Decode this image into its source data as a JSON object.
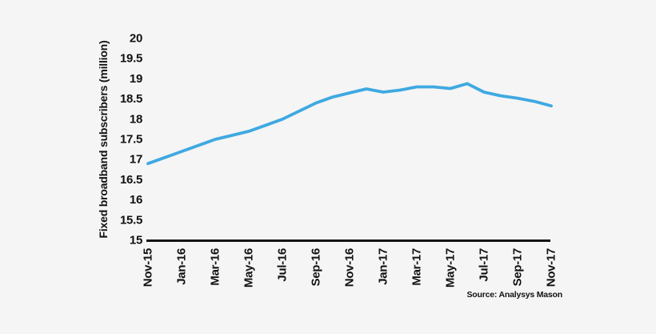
{
  "figure": {
    "background_color": "#f5f5f5",
    "source_note": "Source: Analysys Mason"
  },
  "chart_data": {
    "type": "line",
    "title": "",
    "xlabel": "",
    "ylabel": "Fixed broadband subscribers (million)",
    "categories": [
      "Nov-15",
      "Dec-15",
      "Jan-16",
      "Feb-16",
      "Mar-16",
      "Apr-16",
      "May-16",
      "Jun-16",
      "Jul-16",
      "Aug-16",
      "Sep-16",
      "Oct-16",
      "Nov-16",
      "Dec-16",
      "Jan-17",
      "Feb-17",
      "Mar-17",
      "Apr-17",
      "May-17",
      "Jun-17",
      "Jul-17",
      "Aug-17",
      "Sep-17",
      "Oct-17",
      "Nov-17"
    ],
    "values": [
      16.9,
      17.05,
      17.2,
      17.35,
      17.5,
      17.6,
      17.7,
      17.85,
      18.0,
      18.2,
      18.4,
      18.55,
      18.65,
      18.75,
      18.67,
      18.72,
      18.8,
      18.8,
      18.76,
      18.88,
      18.67,
      18.58,
      18.52,
      18.44,
      18.33
    ],
    "series_name": "Fixed broadband subscribers",
    "x_tick_every": 2,
    "x_tick_labels": [
      "Nov-15",
      "Jan-16",
      "Mar-16",
      "May-16",
      "Jul-16",
      "Sep-16",
      "Nov-16",
      "Jan-17",
      "Mar-17",
      "May-17",
      "Jul-17",
      "Sep-17",
      "Nov-17"
    ],
    "ylim": [
      15,
      20
    ],
    "y_tick_step": 0.5,
    "y_tick_labels": [
      "20",
      "19.5",
      "19",
      "18.5",
      "18",
      "17.5",
      "17",
      "16.5",
      "16",
      "15.5",
      "15"
    ],
    "grid": false,
    "legend": "none",
    "line_color": "#3fa9e1",
    "axis_color": "#141414",
    "text_color": "#111111"
  }
}
